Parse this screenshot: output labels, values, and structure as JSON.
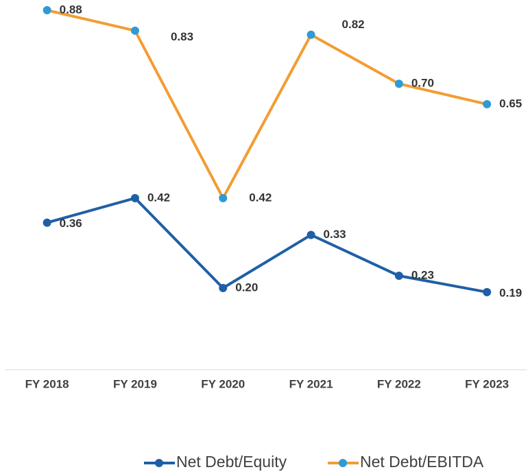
{
  "chart_data": {
    "type": "line",
    "categories": [
      "FY 2018",
      "FY 2019",
      "FY 2020",
      "FY 2021",
      "FY 2022",
      "FY 2023"
    ],
    "series": [
      {
        "name": "Net Debt/Equity",
        "color": "#1f5fa6",
        "marker_color": "#1f5fa6",
        "values": [
          0.36,
          0.42,
          0.2,
          0.33,
          0.23,
          0.19
        ],
        "value_labels": [
          "0.36",
          "0.42",
          "0.20",
          "0.33",
          "0.23",
          "0.19"
        ]
      },
      {
        "name": "Net Debt/EBITDA",
        "color": "#f39c33",
        "marker_color": "#2e9bd6",
        "values": [
          0.88,
          0.83,
          0.42,
          0.82,
          0.7,
          0.65
        ],
        "value_labels": [
          "0.88",
          "0.83",
          "0.42",
          "0.82",
          "0.70",
          "0.65"
        ]
      }
    ],
    "ylim": [
      0,
      0.9
    ],
    "grid": false,
    "legend": "bottom"
  }
}
